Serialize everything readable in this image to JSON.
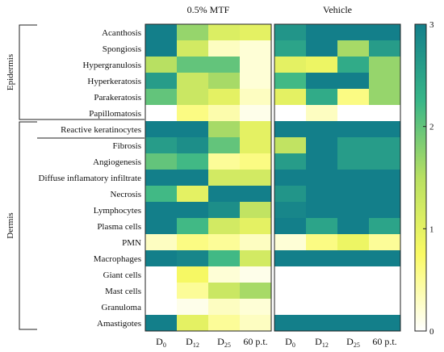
{
  "chart_data": {
    "type": "heatmap",
    "panels": [
      {
        "title": "0.5% MTF",
        "columns": [
          {
            "base": "D",
            "sub": "0"
          },
          {
            "base": "D",
            "sub": "12"
          },
          {
            "base": "D",
            "sub": "25"
          },
          {
            "base": "60 p.t.",
            "sub": ""
          }
        ],
        "values": [
          [
            3,
            1.7,
            1.1,
            1.0
          ],
          [
            3,
            1.2,
            0.3,
            0.2
          ],
          [
            1.5,
            2.0,
            2.0,
            0.2
          ],
          [
            2.6,
            1.3,
            1.6,
            0.2
          ],
          [
            2.0,
            1.3,
            1.0,
            0.3
          ],
          [
            0,
            0.6,
            0.4,
            0.1
          ],
          [
            3,
            3,
            1.6,
            1.0
          ],
          [
            2.6,
            2.8,
            2.0,
            1.0
          ],
          [
            2.0,
            2.2,
            0.5,
            0.6
          ],
          [
            3,
            3,
            1.2,
            1.2
          ],
          [
            2.2,
            1.0,
            3,
            3
          ],
          [
            3,
            3,
            2.8,
            1.4
          ],
          [
            3,
            2.2,
            1.2,
            1.0
          ],
          [
            0.3,
            0.6,
            0.5,
            0.3
          ],
          [
            3,
            2.9,
            2.2,
            1.2
          ],
          [
            0,
            0.8,
            0.2,
            0.1
          ],
          [
            0,
            0.5,
            1.3,
            1.6
          ],
          [
            0,
            0.1,
            0.3,
            0.2
          ],
          [
            3,
            1.0,
            0.5,
            0.3
          ]
        ]
      },
      {
        "title": "Vehicle",
        "columns": [
          {
            "base": "D",
            "sub": "0"
          },
          {
            "base": "D",
            "sub": "12"
          },
          {
            "base": "D",
            "sub": "25"
          },
          {
            "base": "60 p.t.",
            "sub": ""
          }
        ],
        "values": [
          [
            2.7,
            3,
            3,
            3
          ],
          [
            2.5,
            3,
            1.6,
            2.6
          ],
          [
            1.0,
            0.9,
            2.4,
            1.7
          ],
          [
            2.2,
            3,
            3,
            1.7
          ],
          [
            1.0,
            2.4,
            0.6,
            1.7
          ],
          [
            0,
            0.3,
            0,
            0
          ],
          [
            3,
            3,
            3,
            3
          ],
          [
            1.4,
            3,
            2.6,
            2.6
          ],
          [
            2.6,
            3,
            2.6,
            2.6
          ],
          [
            3,
            3,
            3,
            3
          ],
          [
            2.7,
            3,
            3,
            3
          ],
          [
            2.9,
            3,
            3,
            3
          ],
          [
            3,
            2.5,
            3,
            2.5
          ],
          [
            0.2,
            0.6,
            0.9,
            0.5
          ],
          [
            3,
            3,
            3,
            3
          ],
          [
            0,
            0,
            0,
            0
          ],
          [
            0,
            0,
            0,
            0
          ],
          [
            0,
            0,
            0,
            0
          ],
          [
            3,
            3,
            3,
            3
          ]
        ]
      }
    ],
    "rows": [
      "Acanthosis",
      "Spongiosis",
      "Hypergranulosis",
      "Hyperkeratosis",
      "Parakeratosis",
      "Papillomatosis",
      "Reactive keratinocytes",
      "Fibrosis",
      "Angiogenesis",
      "Diffuse inflamatory infiltrate",
      "Necrosis",
      "Lymphocytes",
      "Plasma cells",
      "PMN",
      "Macrophages",
      "Giant cells",
      "Mast cells",
      "Granuloma",
      "Amastigotes"
    ],
    "groups": [
      {
        "label": "Epidermis",
        "from": 0,
        "to": 5
      },
      {
        "label": "Dermis",
        "from": 6,
        "to": 18
      }
    ],
    "colorbar": {
      "min": 0,
      "max": 3,
      "ticks": [
        0,
        1,
        2,
        3
      ],
      "stops": [
        "#ffffff",
        "#fafa64",
        "#b8e062",
        "#38b688",
        "#137f8a"
      ]
    }
  }
}
